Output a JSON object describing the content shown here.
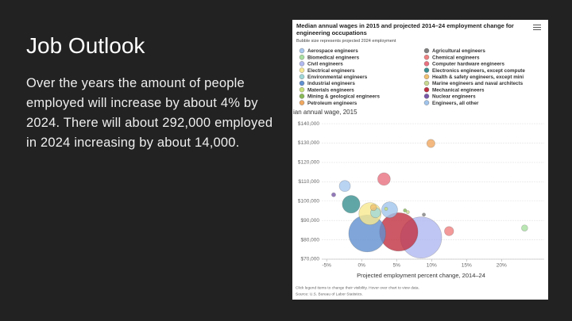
{
  "slide": {
    "title": "Job Outlook",
    "body": "Over the years the amount of people employed will increase by about 4% by 2024. There will about 292,000 employed in 2024 increasing by about 14,000."
  },
  "chart_data": {
    "type": "bubble",
    "title": "Median annual wages in 2015 and projected 2014–24 employment change for engineering occupations",
    "subtitle": "Bubble size represents projected 2024 employment",
    "y_label": "ian annual wage, 2015",
    "x_label": "Projected employment percent change, 2014–24",
    "notes": [
      "Click legend items to change their visibility. Hover over chart to view data.",
      "Source: U.S. Bureau of Labor Statistics."
    ],
    "xlim": [
      -5.7,
      26.1
    ],
    "ylim": [
      70000,
      142500
    ],
    "xticks": [
      {
        "value": -5,
        "label": "-5%"
      },
      {
        "value": 0,
        "label": "0%"
      },
      {
        "value": 5,
        "label": "5%"
      },
      {
        "value": 10,
        "label": "10%"
      },
      {
        "value": 15,
        "label": "15%"
      },
      {
        "value": 20,
        "label": "20%"
      }
    ],
    "yticks": [
      {
        "value": 70000,
        "label": "$70,000"
      },
      {
        "value": 80000,
        "label": "$80,000"
      },
      {
        "value": 90000,
        "label": "$90,000"
      },
      {
        "value": 100000,
        "label": "$100,000"
      },
      {
        "value": 110000,
        "label": "$110,000"
      },
      {
        "value": 120000,
        "label": "$120,000"
      },
      {
        "value": 130000,
        "label": "$130,000"
      },
      {
        "value": 140000,
        "label": "$140,000"
      }
    ],
    "grid": true,
    "series": [
      {
        "name": "Aerospace engineers",
        "color": "#a8c8f0",
        "x": [
          -2.4
        ],
        "values": [
          107800
        ],
        "sizes": [
          22000
        ]
      },
      {
        "name": "Biomedical engineers",
        "color": "#a8e0a0",
        "x": [
          23.3
        ],
        "values": [
          86100
        ],
        "sizes": [
          7000
        ]
      },
      {
        "name": "Civil engineers",
        "color": "#b0b8f0",
        "x": [
          8.5
        ],
        "values": [
          81200
        ],
        "sizes": [
          300000
        ]
      },
      {
        "name": "Electrical engineers",
        "color": "#f8e890",
        "x": [
          1.2
        ],
        "values": [
          93500
        ],
        "sizes": [
          87000
        ]
      },
      {
        "name": "Environmental engineers",
        "color": "#a0d8d8",
        "x": [
          2
        ],
        "values": [
          94000
        ],
        "sizes": [
          18000
        ]
      },
      {
        "name": "Industrial engineers",
        "color": "#6090d0",
        "x": [
          0.8
        ],
        "values": [
          83300
        ],
        "sizes": [
          241000
        ]
      },
      {
        "name": "Materials engineers",
        "color": "#c8e078",
        "x": [
          3.5
        ],
        "values": [
          96000
        ],
        "sizes": [
          2000
        ]
      },
      {
        "name": "Mining & geological engineers",
        "color": "#88b858",
        "x": [
          6.2
        ],
        "values": [
          95200
        ],
        "sizes": [
          2000
        ]
      },
      {
        "name": "Petroleum engineers",
        "color": "#f0a860",
        "x": [
          9.9
        ],
        "values": [
          129800
        ],
        "sizes": [
          12000
        ]
      },
      {
        "name": "Agricultural engineers",
        "color": "#808080",
        "x": [
          8.9
        ],
        "values": [
          93000
        ],
        "sizes": [
          2000
        ]
      },
      {
        "name": "Chemical engineers",
        "color": "#f08080",
        "x": [
          12.5
        ],
        "values": [
          84500
        ],
        "sizes": [
          15000
        ]
      },
      {
        "name": "Computer hardware engineers",
        "color": "#e87080",
        "x": [
          3.2
        ],
        "values": [
          111400
        ],
        "sizes": [
          28000
        ]
      },
      {
        "name": "Electronics engineers, except compute",
        "color": "#3a9090",
        "x": [
          -1.5
        ],
        "values": [
          98400
        ],
        "sizes": [
          55000
        ]
      },
      {
        "name": "Health & safety engineers, except mini",
        "color": "#f0c070",
        "x": [
          1.7
        ],
        "values": [
          96700
        ],
        "sizes": [
          7000
        ]
      },
      {
        "name": "Marine engineers and naval architects",
        "color": "#c8d890",
        "x": [
          6.6
        ],
        "values": [
          94300
        ],
        "sizes": [
          2000
        ]
      },
      {
        "name": "Mechanical engineers",
        "color": "#c03040",
        "x": [
          5.3
        ],
        "values": [
          84100
        ],
        "sizes": [
          260000
        ]
      },
      {
        "name": "Nuclear engineers",
        "color": "#7858a8",
        "x": [
          -4
        ],
        "values": [
          103300
        ],
        "sizes": [
          3000
        ]
      },
      {
        "name": "Engineers, all other",
        "color": "#a0c4ec",
        "x": [
          4
        ],
        "values": [
          95500
        ],
        "sizes": [
          45000
        ]
      }
    ]
  }
}
